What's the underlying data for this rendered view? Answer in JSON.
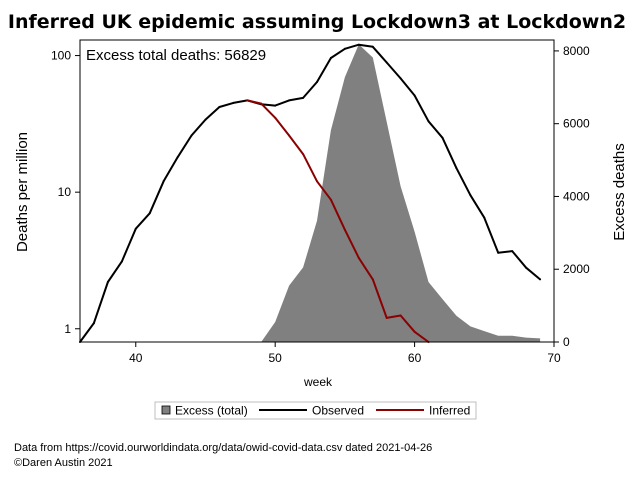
{
  "chart_data": {
    "type": "line",
    "title": "Inferred UK epidemic assuming Lockdown3 at Lockdown2",
    "xlabel": "week",
    "ylabel_left": "Deaths per million",
    "ylabel_right": "Excess deaths",
    "xlim": [
      36,
      70
    ],
    "ylim_left": [
      0.8,
      130
    ],
    "yscale_left": "log",
    "ylim_right": [
      0,
      8300
    ],
    "x_ticks": [
      40,
      50,
      60,
      70
    ],
    "y_ticks_left": [
      {
        "value": 1,
        "label": "1"
      },
      {
        "value": 10,
        "label": "10"
      },
      {
        "value": 100,
        "label": "100"
      }
    ],
    "y_ticks_right": [
      0,
      2000,
      4000,
      6000,
      8000
    ],
    "annotation": "Excess total deaths: 56829",
    "legend": {
      "placement": "bottom",
      "entries": [
        {
          "label": "Excess (total)",
          "type": "area",
          "color": "#808080"
        },
        {
          "label": "Observed",
          "type": "line",
          "color": "#000000"
        },
        {
          "label": "Inferred",
          "type": "line",
          "color": "#8b0000"
        }
      ]
    },
    "series": [
      {
        "name": "Excess (total)",
        "type": "area",
        "axis": "right",
        "color": "#808080",
        "x": [
          48,
          49,
          50,
          51,
          52,
          53,
          54,
          55,
          56,
          57,
          58,
          59,
          60,
          61,
          62,
          63,
          64,
          65,
          66,
          67,
          68,
          69
        ],
        "y": [
          0,
          0,
          550,
          1550,
          2050,
          3330,
          5820,
          7280,
          8180,
          7820,
          6050,
          4280,
          3030,
          1650,
          1180,
          720,
          430,
          300,
          170,
          170,
          120,
          100
        ]
      },
      {
        "name": "Observed",
        "type": "line",
        "axis": "left",
        "color": "#000000",
        "x": [
          36,
          37,
          38,
          39,
          40,
          41,
          42,
          43,
          44,
          45,
          46,
          47,
          48,
          49,
          50,
          51,
          52,
          53,
          54,
          55,
          56,
          57,
          58,
          59,
          60,
          61,
          62,
          63,
          64,
          65,
          66,
          67,
          68,
          69
        ],
        "y": [
          0.8,
          1.1,
          2.2,
          3.1,
          5.4,
          7.0,
          12.0,
          18.0,
          26.0,
          34.0,
          42.0,
          45.0,
          47.0,
          44.0,
          43.0,
          47.0,
          49.0,
          64.0,
          96.0,
          112.0,
          120.0,
          116.0,
          89.0,
          68.0,
          51.0,
          33.0,
          25.0,
          15.0,
          9.5,
          6.5,
          3.6,
          3.7,
          2.8,
          2.3
        ]
      },
      {
        "name": "Inferred",
        "type": "line",
        "axis": "left",
        "color": "#8b0000",
        "x": [
          48,
          49,
          50,
          51,
          52,
          53,
          54,
          55,
          56,
          57,
          58,
          59,
          60,
          61
        ],
        "y": [
          47.0,
          44.5,
          35.0,
          26.0,
          19.0,
          12.0,
          8.8,
          5.3,
          3.3,
          2.3,
          1.2,
          1.25,
          0.95,
          0.8
        ]
      }
    ]
  },
  "footer": {
    "source": "Data from https://covid.ourworldindata.org/data/owid-covid-data.csv dated 2021-04-26",
    "copyright": "©Daren Austin 2021"
  }
}
